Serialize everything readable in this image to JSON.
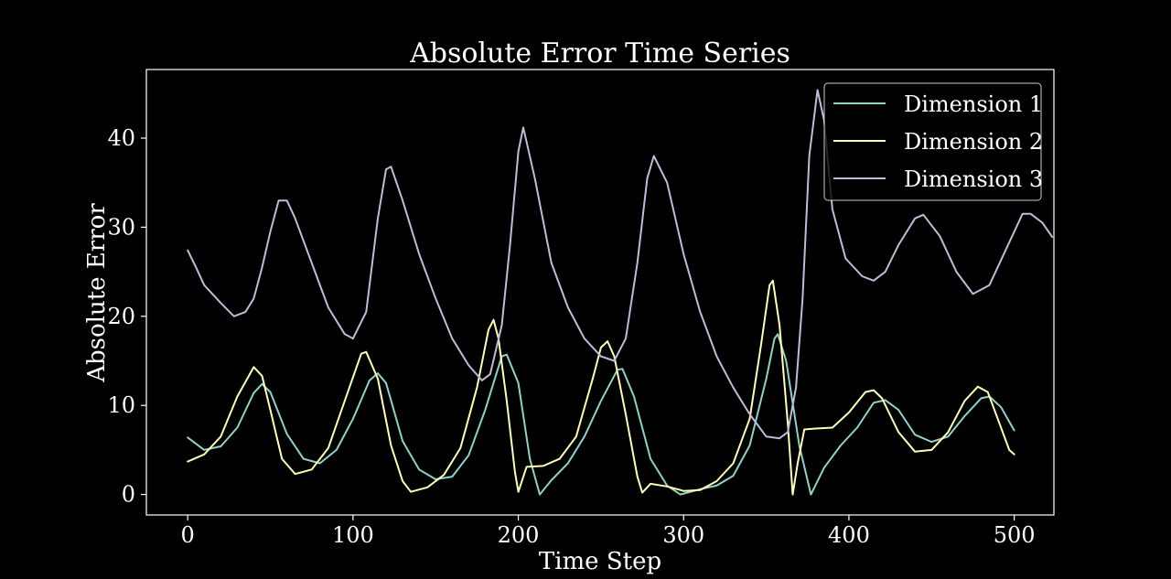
{
  "colors": {
    "background": "#000000",
    "axes": "#ffffff",
    "text": "#ffffff",
    "series": [
      "#8dd3c7",
      "#feffb3",
      "#bfbbd9"
    ]
  },
  "chart_data": {
    "type": "line",
    "title": "Absolute Error Time Series",
    "xlabel": "Time Step",
    "ylabel": "Absolute Error",
    "xlim": [
      -25,
      524
    ],
    "ylim": [
      -2.3,
      47.7
    ],
    "xticks": [
      0,
      100,
      200,
      300,
      400,
      500
    ],
    "yticks": [
      0,
      10,
      20,
      30,
      40
    ],
    "grid": false,
    "legend": {
      "position": "upper right"
    },
    "series": [
      {
        "name": "Dimension 1",
        "color": "#8dd3c7",
        "points": [
          [
            0,
            6.4
          ],
          [
            10,
            5.0
          ],
          [
            20,
            5.4
          ],
          [
            30,
            7.5
          ],
          [
            40,
            11.4
          ],
          [
            45,
            12.4
          ],
          [
            50,
            11.5
          ],
          [
            60,
            6.8
          ],
          [
            70,
            4.0
          ],
          [
            80,
            3.5
          ],
          [
            90,
            5.0
          ],
          [
            100,
            8.5
          ],
          [
            110,
            12.8
          ],
          [
            115,
            13.6
          ],
          [
            120,
            12.5
          ],
          [
            130,
            6.0
          ],
          [
            140,
            2.8
          ],
          [
            150,
            1.7
          ],
          [
            160,
            2.0
          ],
          [
            170,
            4.4
          ],
          [
            180,
            9.5
          ],
          [
            190,
            15.5
          ],
          [
            193,
            15.7
          ],
          [
            200,
            12.5
          ],
          [
            207,
            4.0
          ],
          [
            213,
            0.0
          ],
          [
            220,
            1.6
          ],
          [
            230,
            3.5
          ],
          [
            240,
            6.5
          ],
          [
            250,
            10.5
          ],
          [
            260,
            14.0
          ],
          [
            263,
            14.1
          ],
          [
            270,
            11.0
          ],
          [
            280,
            4.0
          ],
          [
            290,
            1.0
          ],
          [
            298,
            0.0
          ],
          [
            310,
            0.6
          ],
          [
            320,
            1.0
          ],
          [
            330,
            2.1
          ],
          [
            340,
            5.5
          ],
          [
            350,
            13.0
          ],
          [
            355,
            17.5
          ],
          [
            357,
            18.0
          ],
          [
            362,
            15.0
          ],
          [
            370,
            5.5
          ],
          [
            377,
            0.0
          ],
          [
            385,
            3.0
          ],
          [
            395,
            5.5
          ],
          [
            405,
            7.5
          ],
          [
            415,
            10.3
          ],
          [
            422,
            10.6
          ],
          [
            430,
            9.5
          ],
          [
            440,
            6.7
          ],
          [
            450,
            5.9
          ],
          [
            460,
            6.5
          ],
          [
            470,
            8.8
          ],
          [
            480,
            10.8
          ],
          [
            485,
            11.0
          ],
          [
            492,
            9.8
          ],
          [
            500,
            7.2
          ]
        ]
      },
      {
        "name": "Dimension 2",
        "color": "#feffb3",
        "points": [
          [
            0,
            3.7
          ],
          [
            10,
            4.5
          ],
          [
            20,
            6.5
          ],
          [
            30,
            11.0
          ],
          [
            40,
            14.3
          ],
          [
            45,
            13.3
          ],
          [
            50,
            9.5
          ],
          [
            57,
            4.0
          ],
          [
            65,
            2.3
          ],
          [
            75,
            2.8
          ],
          [
            85,
            5.2
          ],
          [
            95,
            10.5
          ],
          [
            105,
            15.8
          ],
          [
            108,
            16.0
          ],
          [
            115,
            13.0
          ],
          [
            123,
            5.5
          ],
          [
            130,
            1.5
          ],
          [
            135,
            0.3
          ],
          [
            145,
            0.8
          ],
          [
            155,
            2.2
          ],
          [
            165,
            5.2
          ],
          [
            175,
            12.0
          ],
          [
            182,
            18.5
          ],
          [
            185,
            19.6
          ],
          [
            188,
            17.5
          ],
          [
            193,
            10.5
          ],
          [
            198,
            2.5
          ],
          [
            200,
            0.3
          ],
          [
            205,
            3.1
          ],
          [
            215,
            3.2
          ],
          [
            225,
            4.0
          ],
          [
            235,
            6.5
          ],
          [
            245,
            13.0
          ],
          [
            250,
            16.5
          ],
          [
            254,
            17.2
          ],
          [
            258,
            15.5
          ],
          [
            265,
            9.0
          ],
          [
            272,
            2.0
          ],
          [
            275,
            0.2
          ],
          [
            280,
            1.2
          ],
          [
            290,
            0.9
          ],
          [
            300,
            0.4
          ],
          [
            310,
            0.5
          ],
          [
            320,
            1.5
          ],
          [
            330,
            3.5
          ],
          [
            340,
            8.5
          ],
          [
            347,
            17.0
          ],
          [
            352,
            23.5
          ],
          [
            354,
            24.0
          ],
          [
            358,
            19.0
          ],
          [
            363,
            8.0
          ],
          [
            366,
            0.0
          ],
          [
            369,
            3.5
          ],
          [
            373,
            7.3
          ],
          [
            380,
            7.4
          ],
          [
            390,
            7.5
          ],
          [
            400,
            9.2
          ],
          [
            410,
            11.5
          ],
          [
            415,
            11.7
          ],
          [
            420,
            10.8
          ],
          [
            430,
            7.0
          ],
          [
            440,
            4.8
          ],
          [
            450,
            5.0
          ],
          [
            460,
            7.0
          ],
          [
            470,
            10.5
          ],
          [
            478,
            12.1
          ],
          [
            484,
            11.5
          ],
          [
            490,
            8.5
          ],
          [
            497,
            5.0
          ],
          [
            500,
            4.5
          ]
        ]
      },
      {
        "name": "Dimension 3",
        "color": "#bfbbd9",
        "points": [
          [
            0,
            27.4
          ],
          [
            5,
            25.5
          ],
          [
            10,
            23.5
          ],
          [
            20,
            21.5
          ],
          [
            28,
            20.0
          ],
          [
            35,
            20.5
          ],
          [
            40,
            22.0
          ],
          [
            45,
            25.5
          ],
          [
            50,
            29.5
          ],
          [
            55,
            33.0
          ],
          [
            60,
            33.0
          ],
          [
            65,
            31.0
          ],
          [
            75,
            26.0
          ],
          [
            85,
            21.0
          ],
          [
            95,
            18.0
          ],
          [
            100,
            17.5
          ],
          [
            108,
            20.5
          ],
          [
            115,
            31.0
          ],
          [
            120,
            36.5
          ],
          [
            123,
            36.8
          ],
          [
            130,
            33.0
          ],
          [
            140,
            27.0
          ],
          [
            150,
            22.0
          ],
          [
            160,
            17.5
          ],
          [
            170,
            14.5
          ],
          [
            178,
            12.8
          ],
          [
            183,
            13.5
          ],
          [
            190,
            19.0
          ],
          [
            195,
            28.0
          ],
          [
            200,
            38.5
          ],
          [
            203,
            41.2
          ],
          [
            210,
            35.5
          ],
          [
            220,
            26.0
          ],
          [
            230,
            21.0
          ],
          [
            240,
            17.5
          ],
          [
            250,
            15.5
          ],
          [
            258,
            15.0
          ],
          [
            265,
            17.5
          ],
          [
            272,
            26.0
          ],
          [
            278,
            35.5
          ],
          [
            282,
            38.0
          ],
          [
            290,
            35.0
          ],
          [
            300,
            27.0
          ],
          [
            310,
            20.5
          ],
          [
            320,
            15.5
          ],
          [
            330,
            12.0
          ],
          [
            340,
            9.0
          ],
          [
            350,
            6.5
          ],
          [
            358,
            6.3
          ],
          [
            363,
            7.0
          ],
          [
            368,
            12.0
          ],
          [
            372,
            22.0
          ],
          [
            376,
            38.0
          ],
          [
            381,
            45.4
          ],
          [
            385,
            42.0
          ],
          [
            390,
            32.0
          ],
          [
            398,
            26.5
          ],
          [
            408,
            24.5
          ],
          [
            415,
            24.0
          ],
          [
            422,
            25.0
          ],
          [
            430,
            28.0
          ],
          [
            440,
            31.0
          ],
          [
            445,
            31.4
          ],
          [
            455,
            29.0
          ],
          [
            465,
            25.0
          ],
          [
            475,
            22.5
          ],
          [
            485,
            23.5
          ],
          [
            495,
            27.5
          ],
          [
            505,
            31.5
          ],
          [
            510,
            31.5
          ],
          [
            517,
            30.5
          ],
          [
            523,
            28.9
          ]
        ]
      }
    ]
  }
}
